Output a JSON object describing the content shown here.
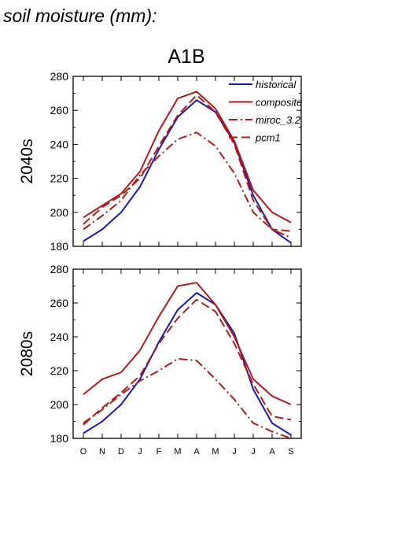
{
  "figure": {
    "title": "soil moisture (mm):",
    "scenario": "A1B"
  },
  "legend": {
    "placement": "top-right",
    "entries": [
      {
        "name": "historical",
        "color": "#1a1aa8",
        "dash": "solid"
      },
      {
        "name": "composite",
        "color": "#b21a1a",
        "dash": "solid"
      },
      {
        "name": "miroc_3.2",
        "color": "#b21a1a",
        "dash": "dashdot"
      },
      {
        "name": "pcm1",
        "color": "#b21a1a",
        "dash": "dashed"
      }
    ]
  },
  "chart_data": [
    {
      "type": "line",
      "row_label": "2040s",
      "categories": [
        "O",
        "N",
        "D",
        "J",
        "F",
        "M",
        "A",
        "M",
        "J",
        "J",
        "A",
        "S"
      ],
      "ylim": [
        180,
        280
      ],
      "yticks": [
        180,
        200,
        220,
        240,
        260,
        280
      ],
      "grid": false,
      "series": [
        {
          "name": "historical",
          "values": [
            183,
            190,
            200,
            215,
            237,
            256,
            266,
            259,
            241,
            210,
            190,
            182
          ]
        },
        {
          "name": "composite",
          "values": [
            197,
            204,
            211,
            224,
            248,
            267,
            271,
            261,
            242,
            213,
            200,
            194
          ]
        },
        {
          "name": "miroc_3.2",
          "values": [
            190,
            198,
            207,
            222,
            233,
            243,
            247,
            239,
            223,
            200,
            190,
            185
          ]
        },
        {
          "name": "pcm1",
          "values": [
            193,
            203,
            210,
            220,
            239,
            257,
            269,
            259,
            240,
            207,
            190,
            189
          ]
        }
      ]
    },
    {
      "type": "line",
      "row_label": "2080s",
      "categories": [
        "O",
        "N",
        "D",
        "J",
        "F",
        "M",
        "A",
        "M",
        "J",
        "J",
        "A",
        "S"
      ],
      "ylim": [
        180,
        280
      ],
      "yticks": [
        180,
        200,
        220,
        240,
        260,
        280
      ],
      "grid": false,
      "series": [
        {
          "name": "historical",
          "values": [
            183,
            190,
            200,
            215,
            237,
            256,
            266,
            259,
            242,
            209,
            189,
            182
          ]
        },
        {
          "name": "composite",
          "values": [
            206,
            215,
            219,
            232,
            252,
            270,
            272,
            259,
            240,
            215,
            205,
            200
          ]
        },
        {
          "name": "miroc_3.2",
          "values": [
            189,
            197,
            206,
            214,
            220,
            227,
            226,
            215,
            203,
            189,
            184,
            180
          ]
        },
        {
          "name": "pcm1",
          "values": [
            188,
            198,
            207,
            217,
            236,
            251,
            262,
            255,
            236,
            212,
            193,
            191
          ]
        }
      ]
    }
  ]
}
